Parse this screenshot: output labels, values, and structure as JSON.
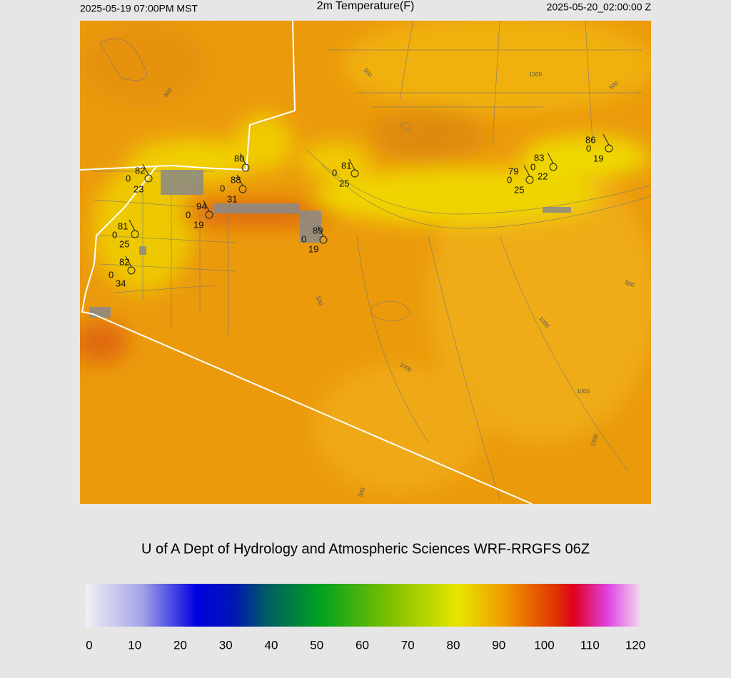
{
  "header": {
    "left": "2025-05-19 07:00PM MST",
    "title": "2m Temperature(F)",
    "right": "2025-05-20_02:00:00 Z"
  },
  "map": {
    "contour_labels": [
      500,
      500,
      1000,
      500,
      500,
      500,
      1000,
      1000,
      1000,
      1500,
      500
    ],
    "stations": [
      {
        "temp": 82,
        "wind": 0,
        "dewpoint": 23
      },
      {
        "temp": 80
      },
      {
        "temp": 88,
        "wind": 0,
        "dewpoint": 31
      },
      {
        "temp": 94,
        "wind": 0,
        "dewpoint": 19
      },
      {
        "temp": 81,
        "wind": 0,
        "dewpoint": 25
      },
      {
        "temp": 89,
        "wind": 0,
        "dewpoint": 19
      },
      {
        "temp": 81,
        "wind": 0,
        "dewpoint": 25
      },
      {
        "temp": 82,
        "wind": 0,
        "dewpoint": 34
      },
      {
        "temp": 79,
        "wind": 0,
        "dewpoint": 25
      },
      {
        "temp": 83,
        "wind": 0,
        "dewpoint": 22
      },
      {
        "temp": 86,
        "wind": 0,
        "dewpoint": 19
      }
    ]
  },
  "credit": "U of A Dept of Hydrology and Atmospheric Sciences WRF-RRGFS 06Z",
  "colorbar": {
    "ticks": [
      0,
      10,
      20,
      30,
      40,
      50,
      60,
      70,
      80,
      90,
      100,
      110,
      120
    ]
  }
}
